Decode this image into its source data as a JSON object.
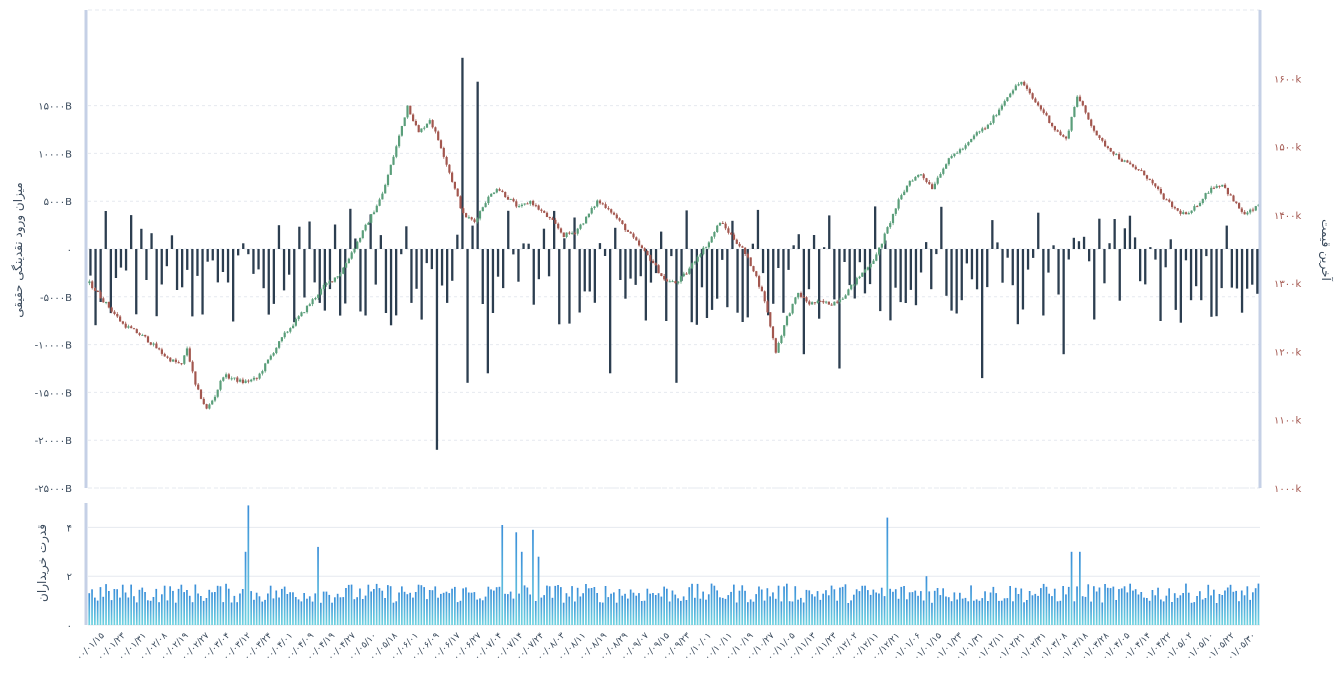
{
  "colors": {
    "up": "#5a9e7a",
    "down": "#a3574f",
    "flow_bar": "#2c3e50",
    "power_top": "#3b8fd9",
    "power_bottom": "#6fd3e0",
    "axis_frame": "#c5d0e6",
    "grid": "#e6e9ef",
    "left_tick_text": "#3a4a5c",
    "right_tick_text": "#a3574f"
  },
  "chart_data": [
    {
      "type": "candlestick+bar",
      "title": "",
      "left_axis": {
        "label": "میزان ورود نقدینگی حقیقی",
        "ticks": [
          "15000B",
          "10000B",
          "5000B",
          "0",
          "-5000B",
          "-10000B",
          "-15000B",
          "-20000B",
          "-25000B"
        ],
        "range": [
          -25000,
          25000
        ]
      },
      "right_axis": {
        "label": "آخرین قیمت",
        "ticks": [
          "1600k",
          "1500k",
          "1400k",
          "1300k",
          "1200k",
          "1100k",
          "1000k"
        ],
        "range": [
          1000,
          1700
        ]
      },
      "price_keypoints": [
        [
          0,
          1300
        ],
        [
          6,
          1270
        ],
        [
          12,
          1240
        ],
        [
          20,
          1220
        ],
        [
          28,
          1190
        ],
        [
          33,
          1180
        ],
        [
          35,
          1205
        ],
        [
          38,
          1150
        ],
        [
          42,
          1115
        ],
        [
          45,
          1135
        ],
        [
          48,
          1165
        ],
        [
          55,
          1155
        ],
        [
          60,
          1160
        ],
        [
          66,
          1200
        ],
        [
          70,
          1225
        ],
        [
          78,
          1265
        ],
        [
          84,
          1295
        ],
        [
          90,
          1315
        ],
        [
          98,
          1375
        ],
        [
          105,
          1430
        ],
        [
          110,
          1500
        ],
        [
          114,
          1560
        ],
        [
          118,
          1520
        ],
        [
          122,
          1540
        ],
        [
          126,
          1500
        ],
        [
          130,
          1450
        ],
        [
          134,
          1400
        ],
        [
          138,
          1390
        ],
        [
          142,
          1420
        ],
        [
          146,
          1440
        ],
        [
          150,
          1425
        ],
        [
          154,
          1410
        ],
        [
          158,
          1420
        ],
        [
          162,
          1405
        ],
        [
          166,
          1390
        ],
        [
          170,
          1370
        ],
        [
          174,
          1375
        ],
        [
          178,
          1395
        ],
        [
          182,
          1420
        ],
        [
          186,
          1410
        ],
        [
          190,
          1390
        ],
        [
          194,
          1370
        ],
        [
          198,
          1350
        ],
        [
          202,
          1330
        ],
        [
          206,
          1305
        ],
        [
          210,
          1300
        ],
        [
          214,
          1315
        ],
        [
          218,
          1340
        ],
        [
          222,
          1360
        ],
        [
          226,
          1390
        ],
        [
          230,
          1370
        ],
        [
          234,
          1350
        ],
        [
          238,
          1320
        ],
        [
          242,
          1275
        ],
        [
          246,
          1200
        ],
        [
          250,
          1250
        ],
        [
          254,
          1285
        ],
        [
          258,
          1270
        ],
        [
          262,
          1272
        ],
        [
          266,
          1270
        ],
        [
          270,
          1280
        ],
        [
          274,
          1300
        ],
        [
          278,
          1320
        ],
        [
          282,
          1340
        ],
        [
          286,
          1380
        ],
        [
          290,
          1420
        ],
        [
          294,
          1450
        ],
        [
          298,
          1460
        ],
        [
          302,
          1440
        ],
        [
          306,
          1470
        ],
        [
          310,
          1490
        ],
        [
          314,
          1500
        ],
        [
          318,
          1520
        ],
        [
          322,
          1530
        ],
        [
          326,
          1555
        ],
        [
          330,
          1580
        ],
        [
          334,
          1595
        ],
        [
          338,
          1570
        ],
        [
          342,
          1550
        ],
        [
          346,
          1525
        ],
        [
          350,
          1510
        ],
        [
          354,
          1575
        ],
        [
          358,
          1540
        ],
        [
          362,
          1510
        ],
        [
          366,
          1495
        ],
        [
          370,
          1480
        ],
        [
          374,
          1470
        ],
        [
          378,
          1460
        ],
        [
          382,
          1440
        ],
        [
          386,
          1420
        ],
        [
          390,
          1405
        ],
        [
          394,
          1400
        ],
        [
          398,
          1420
        ],
        [
          402,
          1440
        ],
        [
          406,
          1445
        ],
        [
          410,
          1420
        ],
        [
          414,
          1400
        ],
        [
          418,
          1410
        ],
        [
          419,
          1415
        ]
      ],
      "price_n": 420,
      "flow_n": 230,
      "flow_spikes": [
        [
          68,
          -21000
        ],
        [
          73,
          20000
        ],
        [
          74,
          -14000
        ],
        [
          76,
          17500
        ],
        [
          78,
          -13000
        ],
        [
          115,
          -14000
        ],
        [
          102,
          -13000
        ],
        [
          140,
          -11000
        ],
        [
          147,
          -12500
        ],
        [
          175,
          -13000
        ],
        [
          191,
          -11000
        ],
        [
          175,
          -13500
        ],
        [
          240,
          -12500
        ],
        [
          230,
          -10000
        ]
      ],
      "buying_power": {
        "label": "قدرت خریداران",
        "ticks": [
          "4",
          "2",
          "0"
        ],
        "range": [
          0,
          5
        ],
        "n": 420,
        "spikes": [
          [
            57,
            4.9
          ],
          [
            56,
            3.0
          ],
          [
            82,
            3.2
          ],
          [
            148,
            4.1
          ],
          [
            153,
            3.8
          ],
          [
            155,
            3.0
          ],
          [
            159,
            3.9
          ],
          [
            161,
            2.8
          ],
          [
            286,
            4.4
          ],
          [
            352,
            3.0
          ],
          [
            355,
            3.0
          ],
          [
            300,
            2.0
          ]
        ]
      },
      "x_labels": [
        "00/01/15",
        "00/01/23",
        "00/01/31",
        "00/02/08",
        "00/02/19",
        "00/02/27",
        "00/03/04",
        "00/03/12",
        "00/03/24",
        "00/04/01",
        "00/04/09",
        "00/04/19",
        "00/04/27",
        "00/05/10",
        "00/05/18",
        "00/06/01",
        "00/06/09",
        "00/06/17",
        "00/06/27",
        "00/07/04",
        "00/07/14",
        "00/07/24",
        "00/08/03",
        "00/08/11",
        "00/08/19",
        "00/08/29",
        "00/09/07",
        "00/09/15",
        "00/09/23",
        "00/10/01",
        "00/10/11",
        "00/10/19",
        "00/10/27",
        "00/11/05",
        "00/11/13",
        "00/11/23",
        "00/12/02",
        "00/12/11",
        "00/12/21",
        "01/01/06",
        "01/01/15",
        "01/01/23",
        "01/01/31",
        "01/02/11",
        "01/02/21",
        "01/02/31",
        "01/03/08",
        "01/03/18",
        "01/03/28",
        "01/04/05",
        "01/04/14",
        "01/04/22",
        "01/05/02",
        "01/05/10",
        "01/05/22",
        "01/05/30"
      ]
    }
  ]
}
